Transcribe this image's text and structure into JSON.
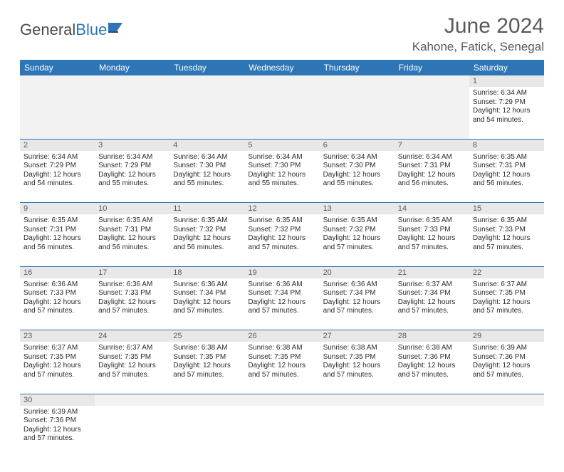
{
  "logo": {
    "text1": "General",
    "text2": "Blue"
  },
  "title": "June 2024",
  "location": "Kahone, Fatick, Senegal",
  "day_headers": [
    "Sunday",
    "Monday",
    "Tuesday",
    "Wednesday",
    "Thursday",
    "Friday",
    "Saturday"
  ],
  "colors": {
    "header_bg": "#2e75b6",
    "header_fg": "#ffffff",
    "daynum_bg": "#e8e8e8",
    "divider": "#2e75b6",
    "text": "#2b2b2b",
    "title_color": "#5a5a5a"
  },
  "weeks": [
    [
      null,
      null,
      null,
      null,
      null,
      null,
      {
        "n": "1",
        "sr": "Sunrise: 6:34 AM",
        "ss": "Sunset: 7:29 PM",
        "dl": "Daylight: 12 hours and 54 minutes."
      }
    ],
    [
      {
        "n": "2",
        "sr": "Sunrise: 6:34 AM",
        "ss": "Sunset: 7:29 PM",
        "dl": "Daylight: 12 hours and 54 minutes."
      },
      {
        "n": "3",
        "sr": "Sunrise: 6:34 AM",
        "ss": "Sunset: 7:29 PM",
        "dl": "Daylight: 12 hours and 55 minutes."
      },
      {
        "n": "4",
        "sr": "Sunrise: 6:34 AM",
        "ss": "Sunset: 7:30 PM",
        "dl": "Daylight: 12 hours and 55 minutes."
      },
      {
        "n": "5",
        "sr": "Sunrise: 6:34 AM",
        "ss": "Sunset: 7:30 PM",
        "dl": "Daylight: 12 hours and 55 minutes."
      },
      {
        "n": "6",
        "sr": "Sunrise: 6:34 AM",
        "ss": "Sunset: 7:30 PM",
        "dl": "Daylight: 12 hours and 55 minutes."
      },
      {
        "n": "7",
        "sr": "Sunrise: 6:34 AM",
        "ss": "Sunset: 7:31 PM",
        "dl": "Daylight: 12 hours and 56 minutes."
      },
      {
        "n": "8",
        "sr": "Sunrise: 6:35 AM",
        "ss": "Sunset: 7:31 PM",
        "dl": "Daylight: 12 hours and 56 minutes."
      }
    ],
    [
      {
        "n": "9",
        "sr": "Sunrise: 6:35 AM",
        "ss": "Sunset: 7:31 PM",
        "dl": "Daylight: 12 hours and 56 minutes."
      },
      {
        "n": "10",
        "sr": "Sunrise: 6:35 AM",
        "ss": "Sunset: 7:31 PM",
        "dl": "Daylight: 12 hours and 56 minutes."
      },
      {
        "n": "11",
        "sr": "Sunrise: 6:35 AM",
        "ss": "Sunset: 7:32 PM",
        "dl": "Daylight: 12 hours and 56 minutes."
      },
      {
        "n": "12",
        "sr": "Sunrise: 6:35 AM",
        "ss": "Sunset: 7:32 PM",
        "dl": "Daylight: 12 hours and 57 minutes."
      },
      {
        "n": "13",
        "sr": "Sunrise: 6:35 AM",
        "ss": "Sunset: 7:32 PM",
        "dl": "Daylight: 12 hours and 57 minutes."
      },
      {
        "n": "14",
        "sr": "Sunrise: 6:35 AM",
        "ss": "Sunset: 7:33 PM",
        "dl": "Daylight: 12 hours and 57 minutes."
      },
      {
        "n": "15",
        "sr": "Sunrise: 6:35 AM",
        "ss": "Sunset: 7:33 PM",
        "dl": "Daylight: 12 hours and 57 minutes."
      }
    ],
    [
      {
        "n": "16",
        "sr": "Sunrise: 6:36 AM",
        "ss": "Sunset: 7:33 PM",
        "dl": "Daylight: 12 hours and 57 minutes."
      },
      {
        "n": "17",
        "sr": "Sunrise: 6:36 AM",
        "ss": "Sunset: 7:33 PM",
        "dl": "Daylight: 12 hours and 57 minutes."
      },
      {
        "n": "18",
        "sr": "Sunrise: 6:36 AM",
        "ss": "Sunset: 7:34 PM",
        "dl": "Daylight: 12 hours and 57 minutes."
      },
      {
        "n": "19",
        "sr": "Sunrise: 6:36 AM",
        "ss": "Sunset: 7:34 PM",
        "dl": "Daylight: 12 hours and 57 minutes."
      },
      {
        "n": "20",
        "sr": "Sunrise: 6:36 AM",
        "ss": "Sunset: 7:34 PM",
        "dl": "Daylight: 12 hours and 57 minutes."
      },
      {
        "n": "21",
        "sr": "Sunrise: 6:37 AM",
        "ss": "Sunset: 7:34 PM",
        "dl": "Daylight: 12 hours and 57 minutes."
      },
      {
        "n": "22",
        "sr": "Sunrise: 6:37 AM",
        "ss": "Sunset: 7:35 PM",
        "dl": "Daylight: 12 hours and 57 minutes."
      }
    ],
    [
      {
        "n": "23",
        "sr": "Sunrise: 6:37 AM",
        "ss": "Sunset: 7:35 PM",
        "dl": "Daylight: 12 hours and 57 minutes."
      },
      {
        "n": "24",
        "sr": "Sunrise: 6:37 AM",
        "ss": "Sunset: 7:35 PM",
        "dl": "Daylight: 12 hours and 57 minutes."
      },
      {
        "n": "25",
        "sr": "Sunrise: 6:38 AM",
        "ss": "Sunset: 7:35 PM",
        "dl": "Daylight: 12 hours and 57 minutes."
      },
      {
        "n": "26",
        "sr": "Sunrise: 6:38 AM",
        "ss": "Sunset: 7:35 PM",
        "dl": "Daylight: 12 hours and 57 minutes."
      },
      {
        "n": "27",
        "sr": "Sunrise: 6:38 AM",
        "ss": "Sunset: 7:35 PM",
        "dl": "Daylight: 12 hours and 57 minutes."
      },
      {
        "n": "28",
        "sr": "Sunrise: 6:38 AM",
        "ss": "Sunset: 7:36 PM",
        "dl": "Daylight: 12 hours and 57 minutes."
      },
      {
        "n": "29",
        "sr": "Sunrise: 6:39 AM",
        "ss": "Sunset: 7:36 PM",
        "dl": "Daylight: 12 hours and 57 minutes."
      }
    ],
    [
      {
        "n": "30",
        "sr": "Sunrise: 6:39 AM",
        "ss": "Sunset: 7:36 PM",
        "dl": "Daylight: 12 hours and 57 minutes."
      },
      null,
      null,
      null,
      null,
      null,
      null
    ]
  ]
}
